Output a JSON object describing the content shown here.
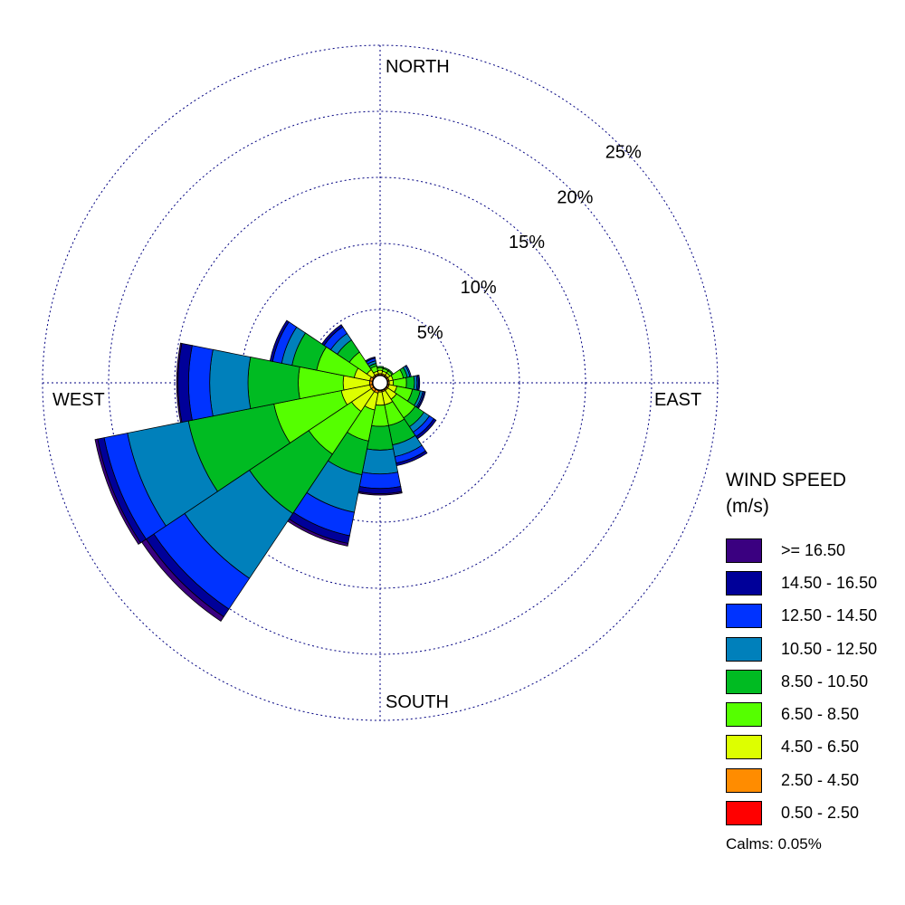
{
  "chart_data": {
    "type": "wind-rose",
    "title": "",
    "directions": [
      "N",
      "NNE",
      "NE",
      "ENE",
      "E",
      "ESE",
      "SE",
      "SSE",
      "S",
      "SSW",
      "SW",
      "WSW",
      "W",
      "WNW",
      "NW",
      "NNW"
    ],
    "compass_labels": {
      "north": "NORTH",
      "east": "EAST",
      "south": "SOUTH",
      "west": "WEST"
    },
    "radial_axis": {
      "rings": [
        5,
        10,
        15,
        20,
        25
      ],
      "ring_labels": [
        "5%",
        "10%",
        "15%",
        "20%",
        "25%"
      ],
      "max": 25,
      "unit": "%"
    },
    "legend": {
      "title_line1": "WIND SPEED",
      "title_line2": "(m/s)",
      "placement": "bottom-right"
    },
    "series": [
      {
        "name": "0.50 - 2.50",
        "color": "#ff0000",
        "values": [
          0.05,
          0.05,
          0.05,
          0.05,
          0.05,
          0.05,
          0.05,
          0.05,
          0.05,
          0.05,
          0.05,
          0.05,
          0.05,
          0.05,
          0.05,
          0.05
        ]
      },
      {
        "name": "2.50 - 4.50",
        "color": "#ff8c00",
        "values": [
          0.1,
          0.1,
          0.1,
          0.1,
          0.1,
          0.1,
          0.1,
          0.1,
          0.1,
          0.2,
          0.2,
          0.2,
          0.2,
          0.2,
          0.1,
          0.1
        ]
      },
      {
        "name": "4.50 - 6.50",
        "color": "#ddff00",
        "values": [
          0.25,
          0.2,
          0.2,
          0.3,
          0.3,
          0.6,
          0.8,
          1.0,
          1.0,
          1.3,
          1.8,
          2.2,
          2.0,
          1.2,
          0.5,
          0.2
        ]
      },
      {
        "name": "6.50 - 8.50",
        "color": "#55ff00",
        "values": [
          0.2,
          0.2,
          0.2,
          0.8,
          1.0,
          1.2,
          1.7,
          1.6,
          1.6,
          2.4,
          3.9,
          5.2,
          3.4,
          2.9,
          1.6,
          0.4
        ]
      },
      {
        "name": "8.50 - 10.50",
        "color": "#00bb22",
        "values": [
          0.1,
          0.1,
          0.1,
          0.3,
          0.6,
          0.6,
          0.8,
          1.5,
          1.8,
          2.6,
          5.4,
          6.6,
          3.8,
          1.9,
          1.1,
          0.2
        ]
      },
      {
        "name": "10.50 - 12.50",
        "color": "#0080bb",
        "values": [
          0.0,
          0.0,
          0.0,
          0.2,
          0.2,
          0.2,
          0.5,
          0.9,
          1.8,
          2.9,
          5.9,
          4.7,
          2.9,
          0.8,
          0.6,
          0.2
        ]
      },
      {
        "name": "12.50 - 14.50",
        "color": "#0033ff",
        "values": [
          0.0,
          0.0,
          0.0,
          0.1,
          0.1,
          0.1,
          0.4,
          0.5,
          1.1,
          1.8,
          2.8,
          1.8,
          1.6,
          0.7,
          0.6,
          0.2
        ]
      },
      {
        "name": "14.50 - 16.50",
        "color": "#000099",
        "values": [
          0.0,
          0.0,
          0.0,
          0.0,
          0.1,
          0.1,
          0.2,
          0.2,
          0.4,
          0.6,
          0.7,
          0.5,
          0.8,
          0.2,
          0.2,
          0.1
        ]
      },
      {
        "name": ">= 16.50",
        "color": "#3a0080",
        "values": [
          0.0,
          0.0,
          0.0,
          0.0,
          0.0,
          0.0,
          0.0,
          0.0,
          0.1,
          0.2,
          0.4,
          0.2,
          0.1,
          0.0,
          0.0,
          0.0
        ]
      }
    ],
    "calms": "Calms: 0.05%",
    "grid": true
  }
}
